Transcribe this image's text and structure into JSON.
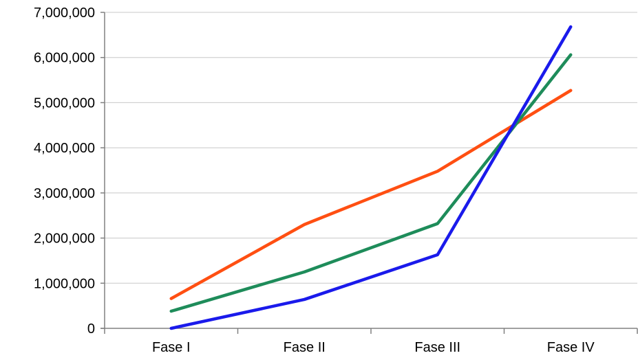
{
  "chart_data": {
    "type": "line",
    "categories": [
      "Fase I",
      "Fase II",
      "Fase III",
      "Fase IV"
    ],
    "y_ticks": [
      "0",
      "1,000,000",
      "2,000,000",
      "3,000,000",
      "4,000,000",
      "5,000,000",
      "6,000,000",
      "7,000,000"
    ],
    "ylim": [
      0,
      7000000
    ],
    "grid": true,
    "legend": "none",
    "series": [
      {
        "color": "#ff4f12",
        "values": [
          660000,
          2300000,
          3480000,
          5270000
        ]
      },
      {
        "color": "#1e8c5a",
        "values": [
          380000,
          1250000,
          2320000,
          6060000
        ]
      },
      {
        "color": "#1a1aeb",
        "values": [
          0,
          640000,
          1630000,
          6680000
        ]
      }
    ]
  }
}
